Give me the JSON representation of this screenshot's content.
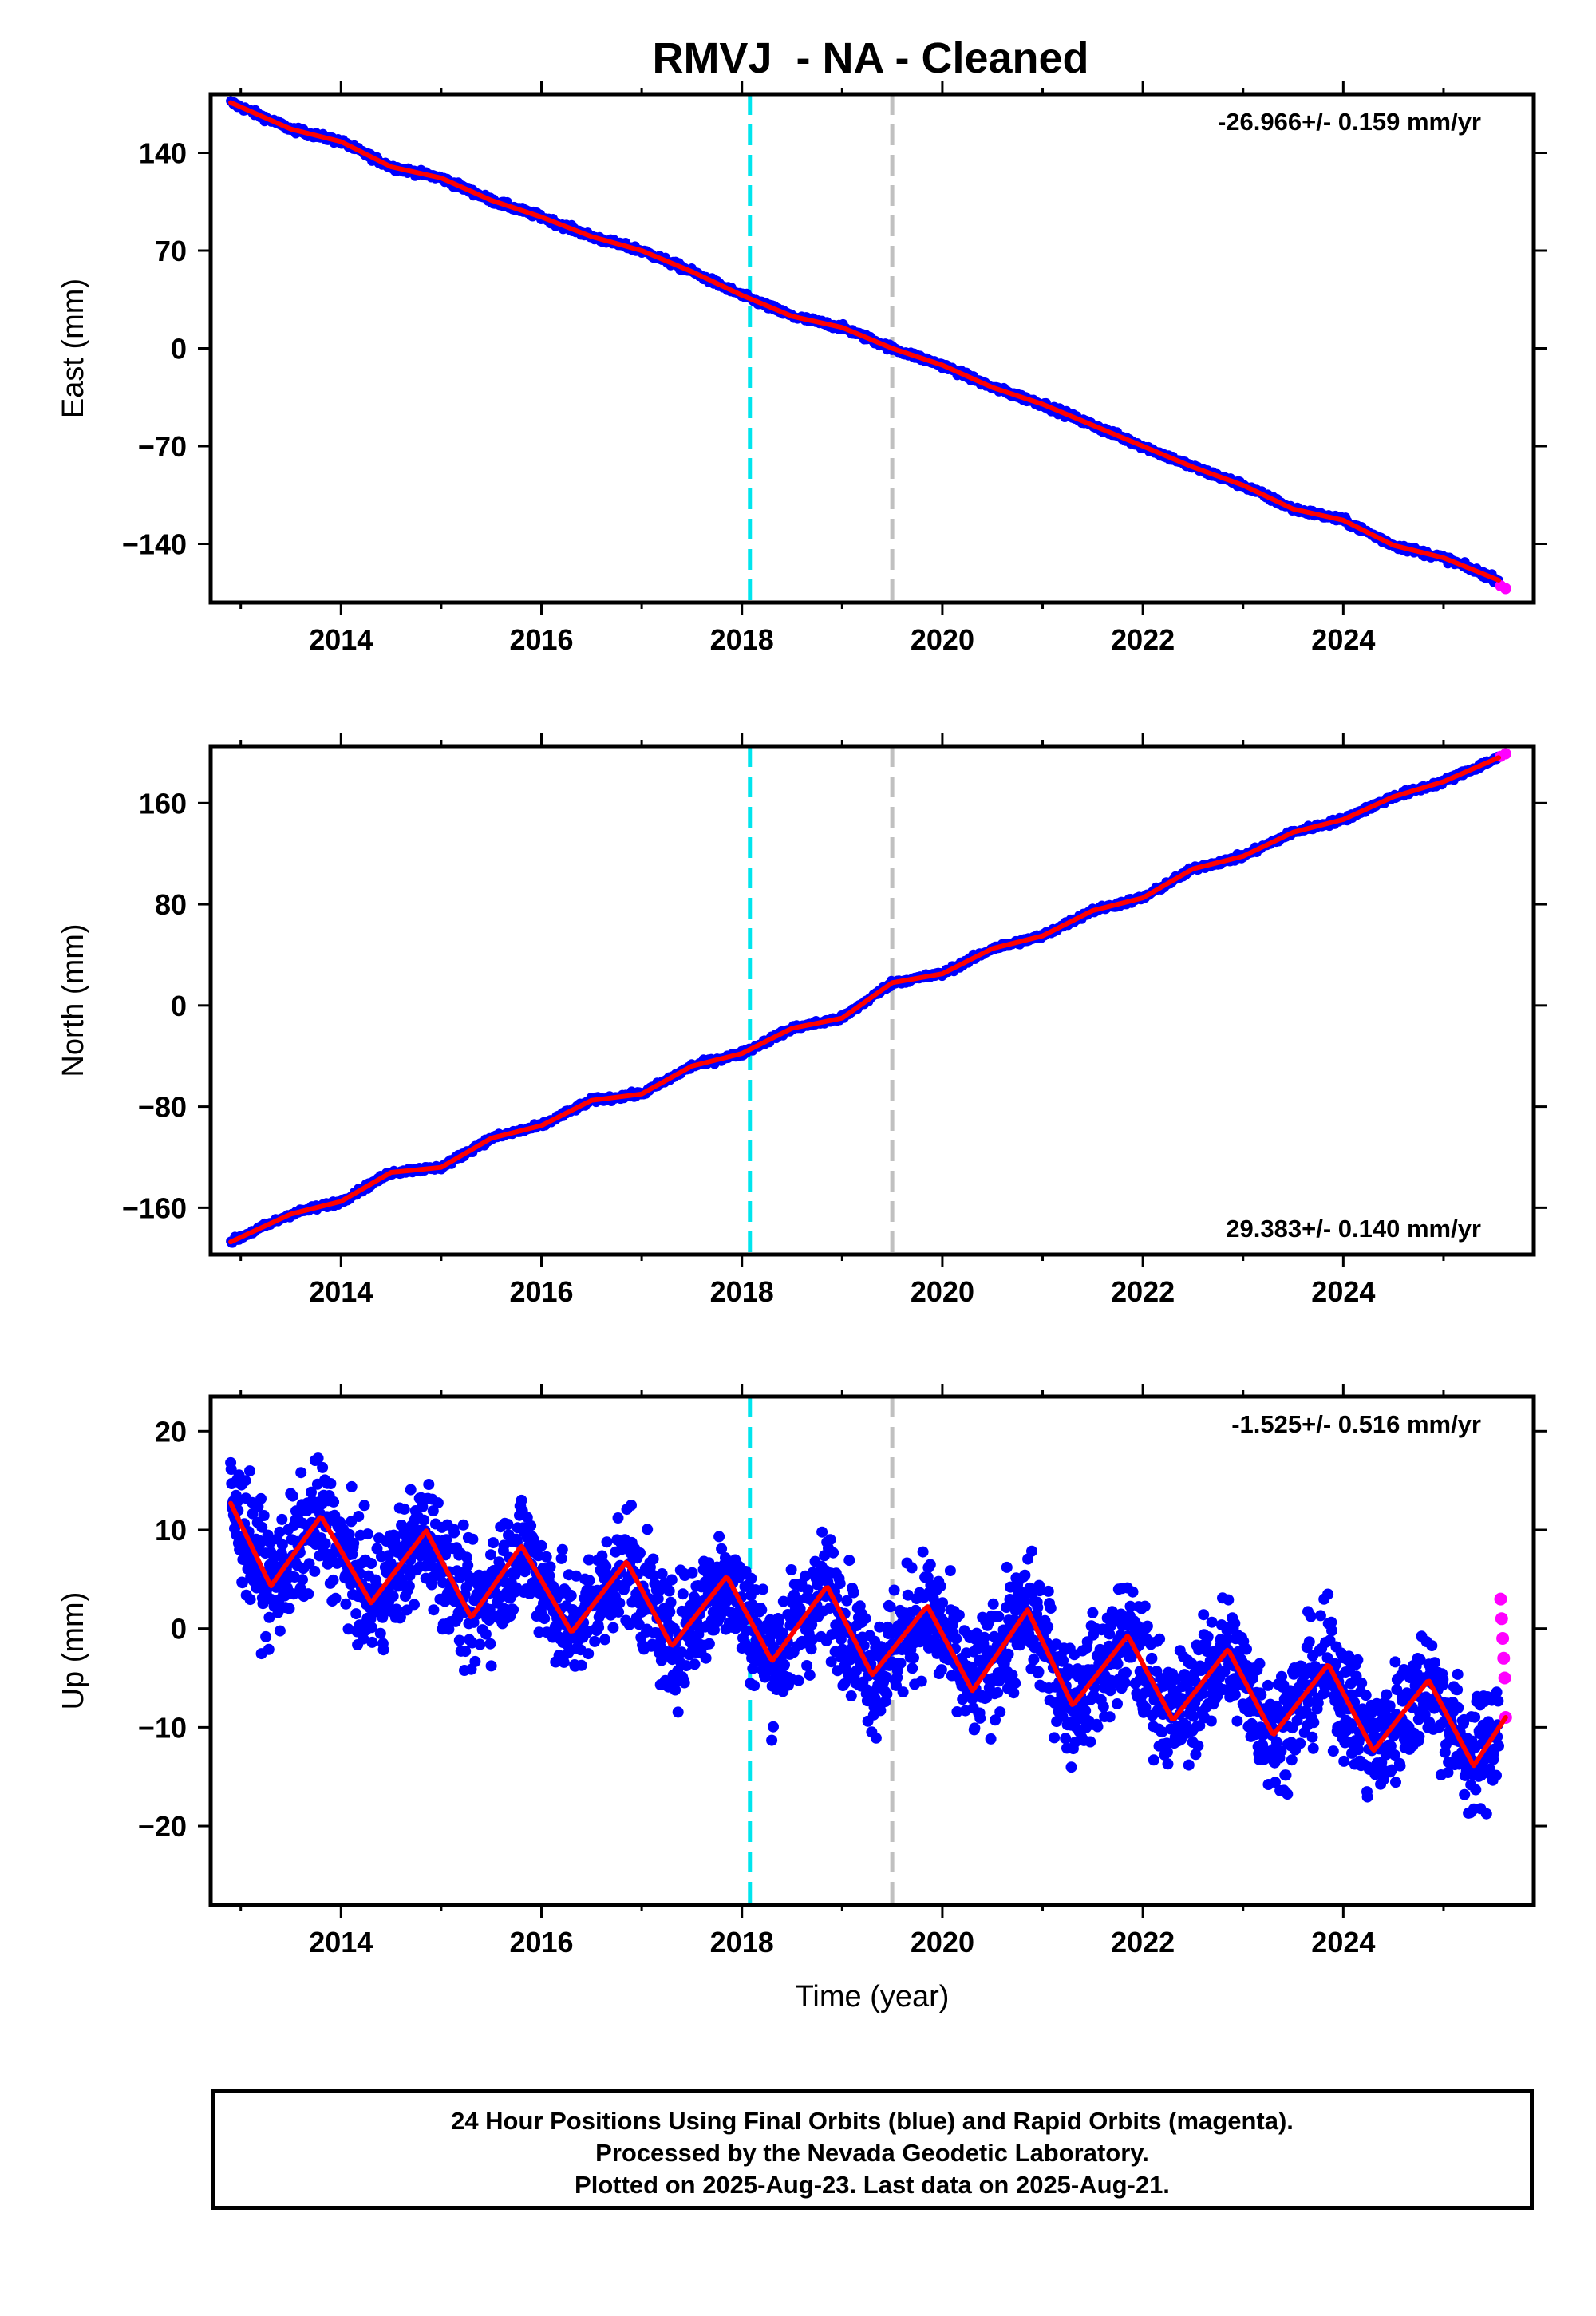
{
  "title": "RMVJ  - NA - Cleaned",
  "colors": {
    "final_orbits": "#0000ff",
    "rapid_orbits": "#ff00ff",
    "model_fit": "#ff0000",
    "event_line_1": "#00e5ee",
    "event_line_2": "#c0c0c0"
  },
  "event_lines_year": [
    2018.08,
    2019.5
  ],
  "x_axis": {
    "label": "Time (year)",
    "range": [
      2012.7,
      2025.9
    ],
    "ticks": [
      "2014",
      "2016",
      "2018",
      "2020",
      "2022",
      "2024"
    ],
    "minor_ticks": [
      2013,
      2015,
      2017,
      2019,
      2021,
      2023,
      2025
    ]
  },
  "chart_data": [
    {
      "type": "scatter",
      "ylabel": "East (mm)",
      "ylim": [
        -182,
        182
      ],
      "yticks": [
        "140",
        "70",
        "0",
        "−70",
        "−140"
      ],
      "yticks_values": [
        140,
        70,
        0,
        -70,
        -140
      ],
      "rate_text": "-26.966+/- 0.159 mm/yr",
      "rate_position": "top-right",
      "series": [
        {
          "name": "Final Orbits (blue)",
          "style": "dense daily points",
          "x": [
            2012.9,
            2013.5,
            2014.0,
            2014.5,
            2015.0,
            2015.5,
            2016.0,
            2016.5,
            2017.0,
            2017.5,
            2018.0,
            2018.5,
            2019.0,
            2019.5,
            2020.0,
            2020.5,
            2021.0,
            2021.5,
            2022.0,
            2022.5,
            2023.0,
            2023.5,
            2024.0,
            2024.5,
            2025.0,
            2025.55
          ],
          "y": [
            176,
            157,
            148,
            130,
            122,
            106,
            94,
            80,
            70,
            55,
            38,
            23,
            15,
            0,
            -12,
            -28,
            -40,
            -55,
            -70,
            -85,
            -98,
            -115,
            -123,
            -141,
            -150,
            -166
          ]
        },
        {
          "name": "Rapid Orbits (magenta)",
          "x": [
            2025.57,
            2025.62
          ],
          "y": [
            -170,
            -172
          ]
        },
        {
          "name": "Model fit",
          "x": [
            2012.9,
            2025.62
          ],
          "y": [
            176,
            -170
          ]
        }
      ]
    },
    {
      "type": "scatter",
      "ylabel": "North (mm)",
      "ylim": [
        -197,
        205
      ],
      "yticks": [
        "160",
        "80",
        "0",
        "−80",
        "−160"
      ],
      "yticks_values": [
        160,
        80,
        0,
        -80,
        -160
      ],
      "rate_text": "29.383+/- 0.140 mm/yr",
      "rate_position": "bottom-right",
      "series": [
        {
          "name": "Final Orbits (blue)",
          "style": "dense daily points",
          "x": [
            2012.9,
            2013.5,
            2014.0,
            2014.5,
            2015.0,
            2015.5,
            2016.0,
            2016.5,
            2017.0,
            2017.5,
            2018.0,
            2018.5,
            2019.0,
            2019.5,
            2020.0,
            2020.5,
            2021.0,
            2021.5,
            2022.0,
            2022.5,
            2023.0,
            2023.5,
            2024.0,
            2024.5,
            2025.0,
            2025.55
          ],
          "y": [
            -187,
            -165,
            -155,
            -132,
            -128,
            -105,
            -95,
            -75,
            -70,
            -48,
            -38,
            -18,
            -10,
            18,
            25,
            45,
            55,
            75,
            85,
            108,
            118,
            137,
            147,
            165,
            177,
            196
          ]
        },
        {
          "name": "Rapid Orbits (magenta)",
          "x": [
            2025.57,
            2025.62
          ],
          "y": [
            197,
            199
          ]
        },
        {
          "name": "Model fit",
          "x": [
            2012.9,
            2025.62
          ],
          "y": [
            -187,
            198
          ]
        }
      ]
    },
    {
      "type": "scatter",
      "ylabel": "Up (mm)",
      "ylim": [
        -28,
        23.5
      ],
      "yticks": [
        "20",
        "10",
        "0",
        "−10",
        "−20"
      ],
      "yticks_values": [
        20,
        10,
        0,
        -10,
        -20
      ],
      "rate_text": "-1.525+/- 0.516 mm/yr",
      "rate_position": "top-right",
      "series": [
        {
          "name": "Final Orbits (blue)",
          "style": "dense noisy daily points, spread about ±5 mm around fit",
          "x": [
            2012.9,
            2013.5,
            2014.0,
            2014.5,
            2015.0,
            2015.5,
            2016.0,
            2016.5,
            2017.0,
            2017.5,
            2018.0,
            2018.5,
            2019.0,
            2019.5,
            2020.0,
            2020.5,
            2021.0,
            2021.5,
            2022.0,
            2022.5,
            2023.0,
            2023.5,
            2024.0,
            2024.5,
            2025.0,
            2025.55
          ],
          "y": [
            12,
            5,
            10,
            3,
            9,
            2,
            8,
            0,
            6,
            -1,
            4,
            -2,
            3,
            -4,
            1,
            -6,
            0,
            -7,
            -2,
            -9,
            -3,
            -10,
            -5,
            -12,
            -7,
            -12
          ]
        },
        {
          "name": "Rapid Orbits (magenta)",
          "x": [
            2025.57,
            2025.58,
            2025.59,
            2025.6,
            2025.61,
            2025.62
          ],
          "y": [
            3,
            1,
            -1,
            -3,
            -5,
            -9
          ]
        },
        {
          "name": "Model fit",
          "style": "annual sinusoid plus trend",
          "x": [
            2012.9,
            2013.3,
            2013.8,
            2014.3,
            2014.85,
            2015.3,
            2015.8,
            2016.3,
            2016.85,
            2017.3,
            2017.85,
            2018.3,
            2018.85,
            2019.3,
            2019.85,
            2020.3,
            2020.85,
            2021.3,
            2021.85,
            2022.3,
            2022.85,
            2023.3,
            2023.85,
            2024.3,
            2024.85,
            2025.3,
            2025.62
          ],
          "y": [
            12.7,
            4.3,
            11.4,
            2.6,
            9.9,
            1.1,
            8.4,
            -0.4,
            6.8,
            -1.8,
            5.3,
            -3.3,
            4.3,
            -4.7,
            2.3,
            -6.3,
            1.9,
            -7.8,
            -0.7,
            -9.3,
            -2.1,
            -10.8,
            -3.6,
            -12.4,
            -5.2,
            -13.9,
            -9
          ]
        }
      ]
    }
  ],
  "footer": {
    "line1": "24 Hour Positions Using Final Orbits (blue) and Rapid Orbits (magenta).",
    "line2": "Processed by the Nevada Geodetic Laboratory.",
    "line3": "Plotted on 2025-Aug-23. Last data on 2025-Aug-21."
  }
}
